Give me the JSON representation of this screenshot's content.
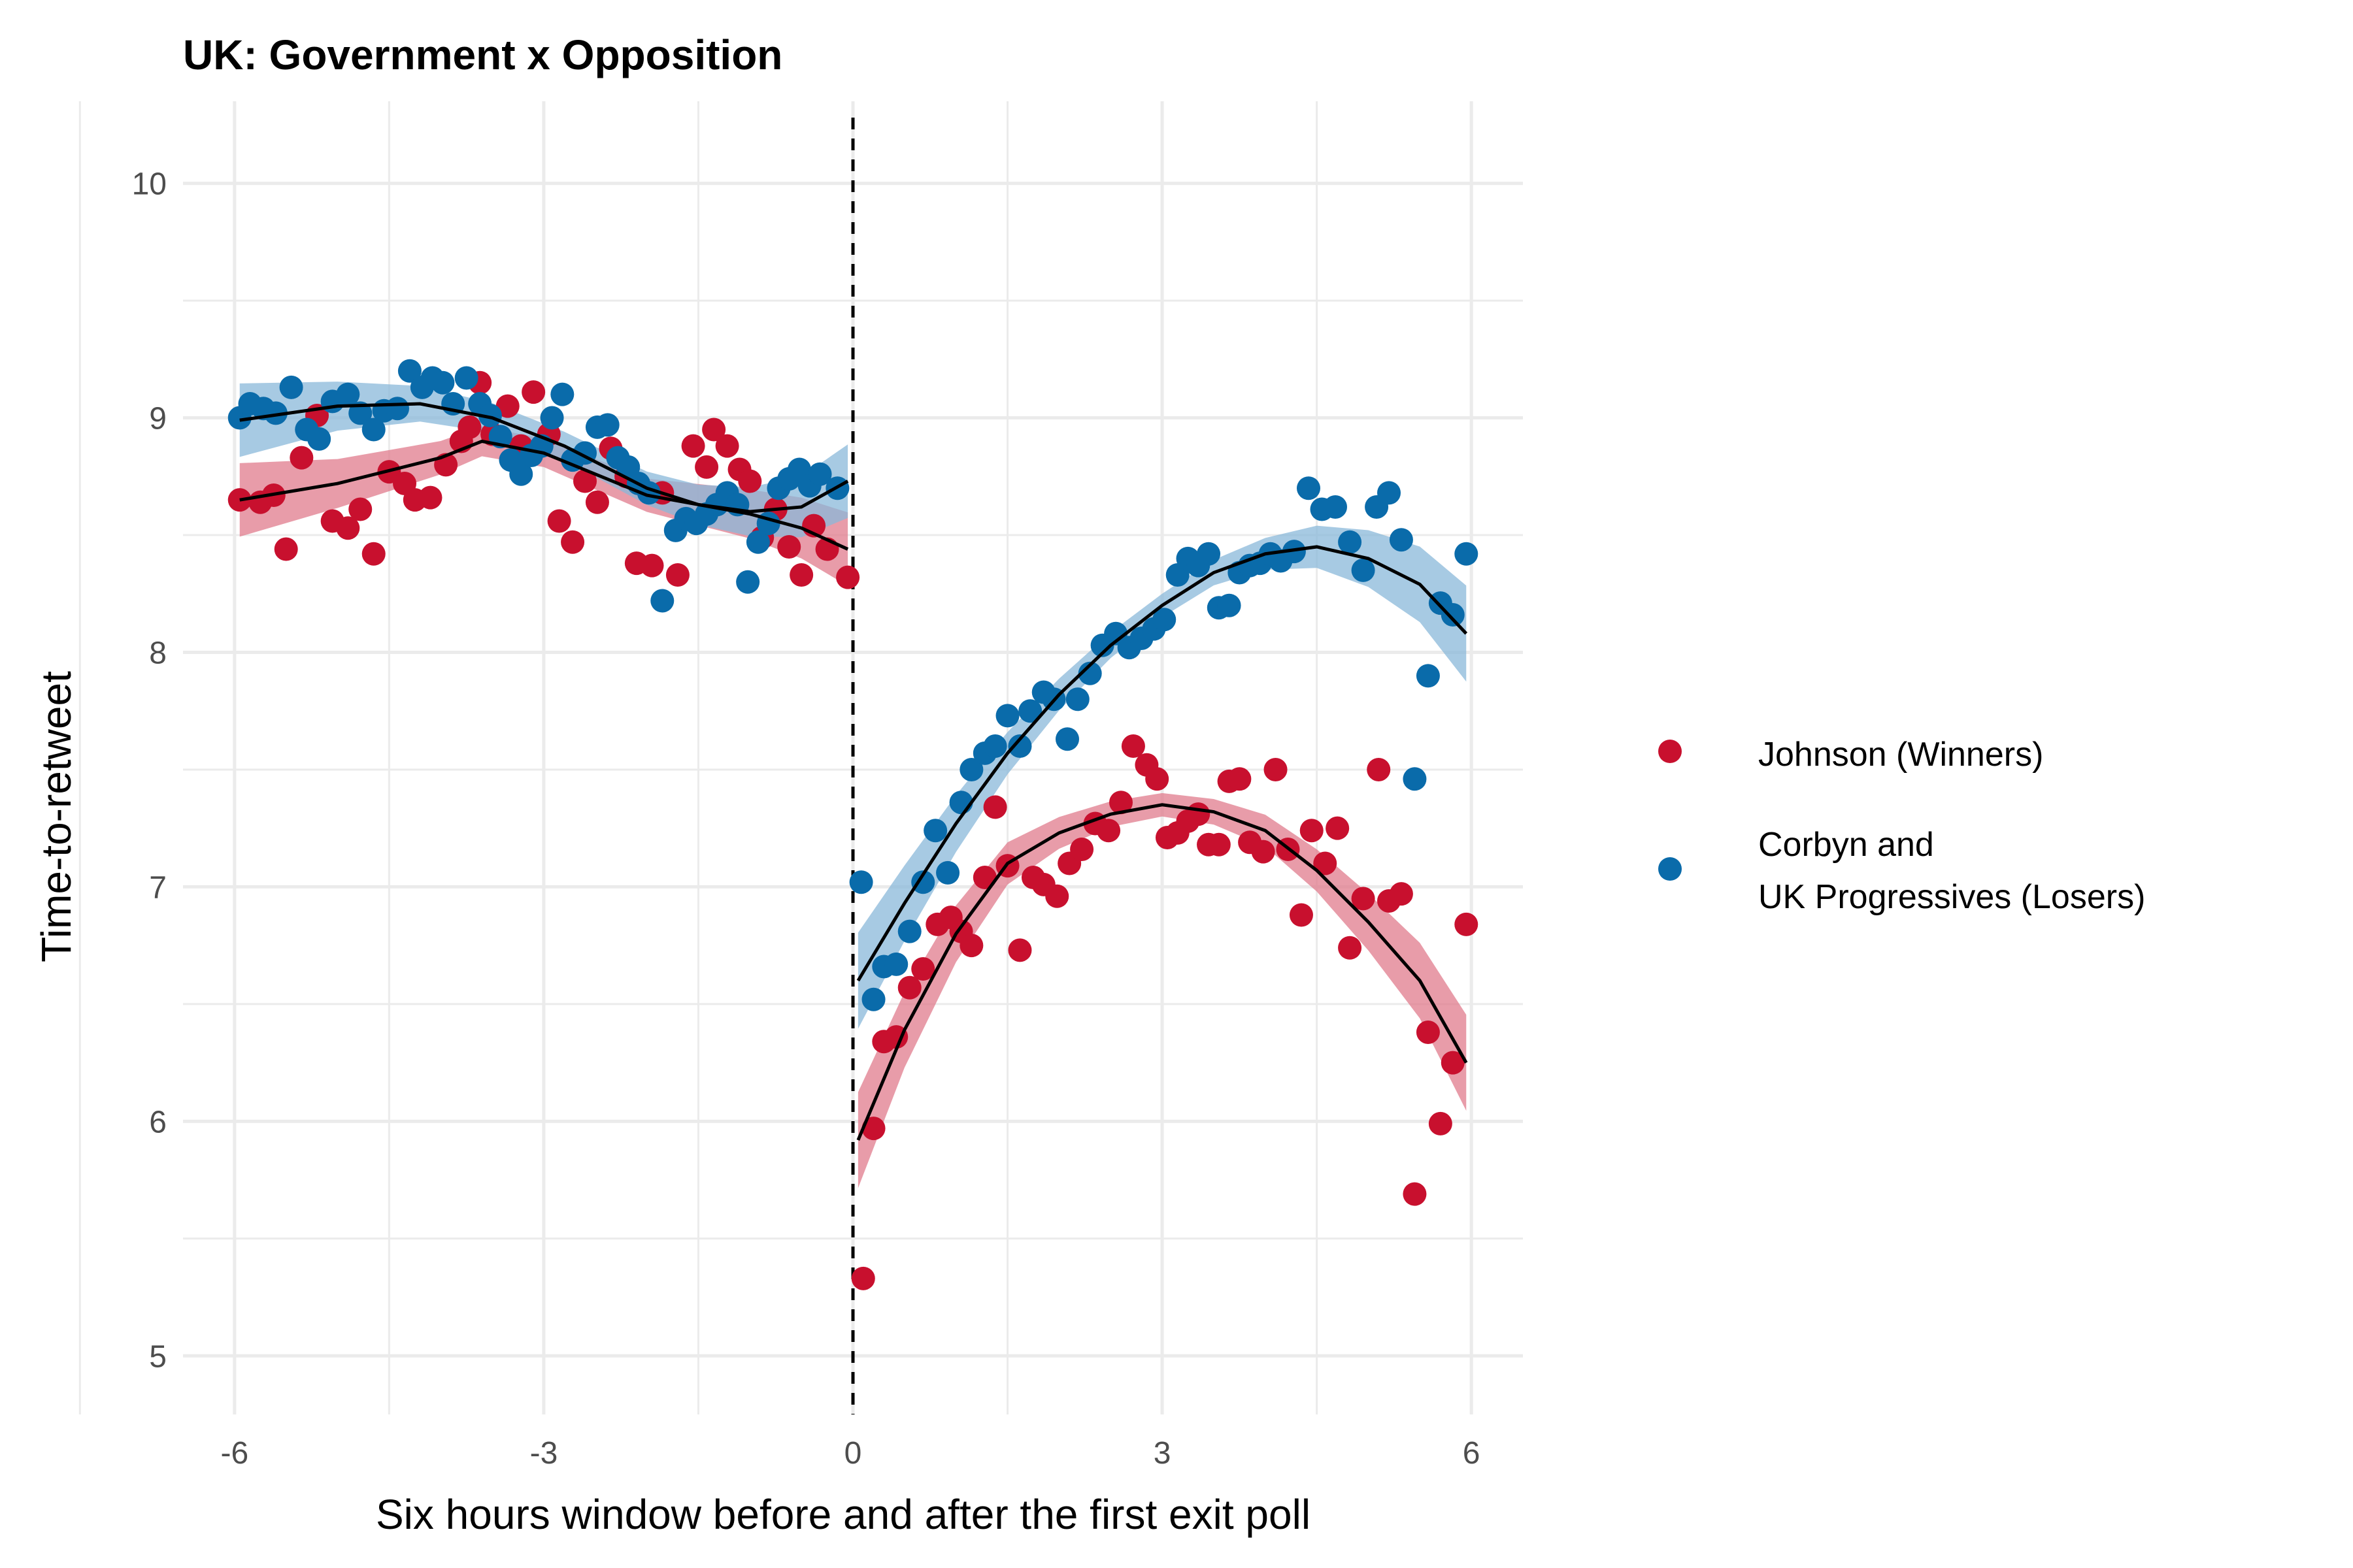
{
  "chart_data": {
    "type": "scatter",
    "title": "UK: Government x Opposition",
    "xlabel": "Six hours window before and after the first exit poll",
    "ylabel": "Time-to-retweet",
    "xlim": [
      -6.5,
      6.5
    ],
    "ylim": [
      4.75,
      10.35
    ],
    "x_ticks": [
      -6,
      -3,
      0,
      3,
      6
    ],
    "x_tick_labels": [
      "-6",
      "-3",
      "0",
      "3",
      "6"
    ],
    "y_ticks": [
      5,
      6,
      7,
      8,
      9,
      10
    ],
    "y_tick_labels": [
      "5",
      "6",
      "7",
      "8",
      "9",
      "10"
    ],
    "grid": true,
    "cutoff_line": {
      "x": 0,
      "style": "dashed"
    },
    "legend_position": "right",
    "series": [
      {
        "name": "Johnson (Winners)",
        "color": "#C8102E",
        "band_color": "#E07B8C",
        "points": [
          [
            -5.95,
            8.65
          ],
          [
            -5.75,
            8.64
          ],
          [
            -5.62,
            8.67
          ],
          [
            -5.5,
            8.44
          ],
          [
            -5.35,
            8.83
          ],
          [
            -5.2,
            9.01
          ],
          [
            -5.05,
            8.56
          ],
          [
            -4.9,
            8.53
          ],
          [
            -4.78,
            8.61
          ],
          [
            -4.65,
            8.42
          ],
          [
            -4.5,
            8.77
          ],
          [
            -4.35,
            8.72
          ],
          [
            -4.25,
            8.65
          ],
          [
            -4.1,
            8.66
          ],
          [
            -3.95,
            8.8
          ],
          [
            -3.8,
            8.9
          ],
          [
            -3.72,
            8.96
          ],
          [
            -3.62,
            9.15
          ],
          [
            -3.5,
            8.93
          ],
          [
            -3.35,
            9.05
          ],
          [
            -3.22,
            8.88
          ],
          [
            -3.1,
            9.11
          ],
          [
            -2.95,
            8.93
          ],
          [
            -2.85,
            8.56
          ],
          [
            -2.72,
            8.47
          ],
          [
            -2.6,
            8.73
          ],
          [
            -2.48,
            8.64
          ],
          [
            -2.35,
            8.87
          ],
          [
            -2.2,
            8.75
          ],
          [
            -2.1,
            8.38
          ],
          [
            -1.95,
            8.37
          ],
          [
            -1.85,
            8.68
          ],
          [
            -1.7,
            8.33
          ],
          [
            -1.55,
            8.88
          ],
          [
            -1.42,
            8.79
          ],
          [
            -1.35,
            8.95
          ],
          [
            -1.22,
            8.88
          ],
          [
            -1.1,
            8.78
          ],
          [
            -1.0,
            8.73
          ],
          [
            -0.88,
            8.49
          ],
          [
            -0.75,
            8.61
          ],
          [
            -0.62,
            8.45
          ],
          [
            -0.5,
            8.33
          ],
          [
            -0.38,
            8.54
          ],
          [
            -0.25,
            8.44
          ],
          [
            -0.05,
            8.32
          ],
          [
            0.1,
            5.33
          ],
          [
            0.2,
            5.97
          ],
          [
            0.3,
            6.34
          ],
          [
            0.42,
            6.36
          ],
          [
            0.55,
            6.57
          ],
          [
            0.68,
            6.65
          ],
          [
            0.82,
            6.84
          ],
          [
            0.95,
            6.87
          ],
          [
            1.05,
            6.81
          ],
          [
            1.15,
            6.75
          ],
          [
            1.28,
            7.04
          ],
          [
            1.38,
            7.34
          ],
          [
            1.5,
            7.09
          ],
          [
            1.62,
            6.73
          ],
          [
            1.75,
            7.04
          ],
          [
            1.85,
            7.01
          ],
          [
            1.98,
            6.96
          ],
          [
            2.1,
            7.1
          ],
          [
            2.22,
            7.16
          ],
          [
            2.35,
            7.27
          ],
          [
            2.48,
            7.24
          ],
          [
            2.6,
            7.36
          ],
          [
            2.72,
            7.6
          ],
          [
            2.85,
            7.52
          ],
          [
            2.95,
            7.46
          ],
          [
            3.05,
            7.21
          ],
          [
            3.15,
            7.23
          ],
          [
            3.25,
            7.28
          ],
          [
            3.35,
            7.31
          ],
          [
            3.45,
            7.18
          ],
          [
            3.55,
            7.18
          ],
          [
            3.65,
            7.45
          ],
          [
            3.75,
            7.46
          ],
          [
            3.85,
            7.19
          ],
          [
            3.98,
            7.15
          ],
          [
            4.1,
            7.5
          ],
          [
            4.22,
            7.16
          ],
          [
            4.35,
            6.88
          ],
          [
            4.45,
            7.24
          ],
          [
            4.58,
            7.1
          ],
          [
            4.7,
            7.25
          ],
          [
            4.82,
            6.74
          ],
          [
            4.95,
            6.95
          ],
          [
            5.1,
            7.5
          ],
          [
            5.2,
            6.94
          ],
          [
            5.32,
            6.97
          ],
          [
            5.45,
            5.69
          ],
          [
            5.58,
            6.38
          ],
          [
            5.7,
            5.99
          ],
          [
            5.82,
            6.25
          ],
          [
            5.95,
            6.84
          ]
        ],
        "smooth_pre": [
          [
            -5.95,
            8.65
          ],
          [
            -5,
            8.72
          ],
          [
            -4,
            8.83
          ],
          [
            -3.6,
            8.9
          ],
          [
            -3,
            8.85
          ],
          [
            -2,
            8.67
          ],
          [
            -1,
            8.59
          ],
          [
            -0.5,
            8.53
          ],
          [
            -0.05,
            8.44
          ]
        ],
        "smooth_post": [
          [
            0.05,
            5.92
          ],
          [
            0.5,
            6.39
          ],
          [
            1,
            6.8
          ],
          [
            1.5,
            7.1
          ],
          [
            2,
            7.23
          ],
          [
            2.5,
            7.31
          ],
          [
            3,
            7.35
          ],
          [
            3.5,
            7.32
          ],
          [
            4,
            7.24
          ],
          [
            4.5,
            7.07
          ],
          [
            5,
            6.85
          ],
          [
            5.5,
            6.6
          ],
          [
            5.95,
            6.25
          ]
        ]
      },
      {
        "name": "Corbyn and\n UK Progressives (Losers)",
        "color": "#0A6BAA",
        "band_color": "#8AB8DA",
        "points": [
          [
            -5.95,
            9.0
          ],
          [
            -5.85,
            9.06
          ],
          [
            -5.72,
            9.04
          ],
          [
            -5.6,
            9.02
          ],
          [
            -5.45,
            9.13
          ],
          [
            -5.3,
            8.95
          ],
          [
            -5.18,
            8.91
          ],
          [
            -5.05,
            9.07
          ],
          [
            -4.9,
            9.1
          ],
          [
            -4.78,
            9.02
          ],
          [
            -4.65,
            8.95
          ],
          [
            -4.55,
            9.03
          ],
          [
            -4.42,
            9.04
          ],
          [
            -4.3,
            9.2
          ],
          [
            -4.18,
            9.13
          ],
          [
            -4.08,
            9.17
          ],
          [
            -3.98,
            9.15
          ],
          [
            -3.88,
            9.06
          ],
          [
            -3.75,
            9.17
          ],
          [
            -3.62,
            9.06
          ],
          [
            -3.52,
            9.01
          ],
          [
            -3.42,
            8.92
          ],
          [
            -3.32,
            8.82
          ],
          [
            -3.22,
            8.76
          ],
          [
            -3.12,
            8.84
          ],
          [
            -3.02,
            8.88
          ],
          [
            -2.92,
            9.0
          ],
          [
            -2.82,
            9.1
          ],
          [
            -2.72,
            8.82
          ],
          [
            -2.6,
            8.85
          ],
          [
            -2.48,
            8.96
          ],
          [
            -2.38,
            8.97
          ],
          [
            -2.28,
            8.83
          ],
          [
            -2.18,
            8.79
          ],
          [
            -2.08,
            8.72
          ],
          [
            -1.98,
            8.68
          ],
          [
            -1.85,
            8.22
          ],
          [
            -1.72,
            8.52
          ],
          [
            -1.62,
            8.57
          ],
          [
            -1.52,
            8.55
          ],
          [
            -1.42,
            8.59
          ],
          [
            -1.32,
            8.63
          ],
          [
            -1.22,
            8.68
          ],
          [
            -1.12,
            8.63
          ],
          [
            -1.02,
            8.3
          ],
          [
            -0.92,
            8.47
          ],
          [
            -0.82,
            8.55
          ],
          [
            -0.72,
            8.7
          ],
          [
            -0.62,
            8.74
          ],
          [
            -0.52,
            8.78
          ],
          [
            -0.42,
            8.71
          ],
          [
            -0.32,
            8.76
          ],
          [
            -0.15,
            8.7
          ],
          [
            0.08,
            7.02
          ],
          [
            0.2,
            6.52
          ],
          [
            0.3,
            6.66
          ],
          [
            0.42,
            6.67
          ],
          [
            0.55,
            6.81
          ],
          [
            0.68,
            7.02
          ],
          [
            0.8,
            7.24
          ],
          [
            0.92,
            7.06
          ],
          [
            1.05,
            7.36
          ],
          [
            1.15,
            7.5
          ],
          [
            1.28,
            7.57
          ],
          [
            1.38,
            7.6
          ],
          [
            1.5,
            7.73
          ],
          [
            1.62,
            7.6
          ],
          [
            1.72,
            7.75
          ],
          [
            1.85,
            7.83
          ],
          [
            1.95,
            7.8
          ],
          [
            2.08,
            7.63
          ],
          [
            2.18,
            7.8
          ],
          [
            2.3,
            7.91
          ],
          [
            2.42,
            8.03
          ],
          [
            2.55,
            8.08
          ],
          [
            2.68,
            8.02
          ],
          [
            2.8,
            8.06
          ],
          [
            2.92,
            8.1
          ],
          [
            3.02,
            8.14
          ],
          [
            3.15,
            8.33
          ],
          [
            3.25,
            8.4
          ],
          [
            3.35,
            8.37
          ],
          [
            3.45,
            8.42
          ],
          [
            3.55,
            8.19
          ],
          [
            3.65,
            8.2
          ],
          [
            3.75,
            8.34
          ],
          [
            3.85,
            8.37
          ],
          [
            3.95,
            8.38
          ],
          [
            4.05,
            8.42
          ],
          [
            4.15,
            8.39
          ],
          [
            4.28,
            8.43
          ],
          [
            4.42,
            8.7
          ],
          [
            4.55,
            8.61
          ],
          [
            4.68,
            8.62
          ],
          [
            4.82,
            8.47
          ],
          [
            4.95,
            8.35
          ],
          [
            5.08,
            8.62
          ],
          [
            5.2,
            8.68
          ],
          [
            5.32,
            8.48
          ],
          [
            5.45,
            7.46
          ],
          [
            5.58,
            7.9
          ],
          [
            5.7,
            8.21
          ],
          [
            5.82,
            8.16
          ],
          [
            5.95,
            8.42
          ]
        ],
        "smooth_pre": [
          [
            -5.95,
            8.99
          ],
          [
            -5,
            9.05
          ],
          [
            -4.2,
            9.06
          ],
          [
            -3.5,
            9.0
          ],
          [
            -2.8,
            8.88
          ],
          [
            -2,
            8.7
          ],
          [
            -1.5,
            8.63
          ],
          [
            -1,
            8.6
          ],
          [
            -0.5,
            8.62
          ],
          [
            -0.05,
            8.73
          ]
        ],
        "smooth_post": [
          [
            0.05,
            6.6
          ],
          [
            0.5,
            6.93
          ],
          [
            1,
            7.27
          ],
          [
            1.5,
            7.57
          ],
          [
            2,
            7.82
          ],
          [
            2.5,
            8.03
          ],
          [
            3,
            8.2
          ],
          [
            3.5,
            8.34
          ],
          [
            4,
            8.42
          ],
          [
            4.5,
            8.45
          ],
          [
            5,
            8.4
          ],
          [
            5.5,
            8.29
          ],
          [
            5.95,
            8.08
          ]
        ]
      }
    ]
  }
}
